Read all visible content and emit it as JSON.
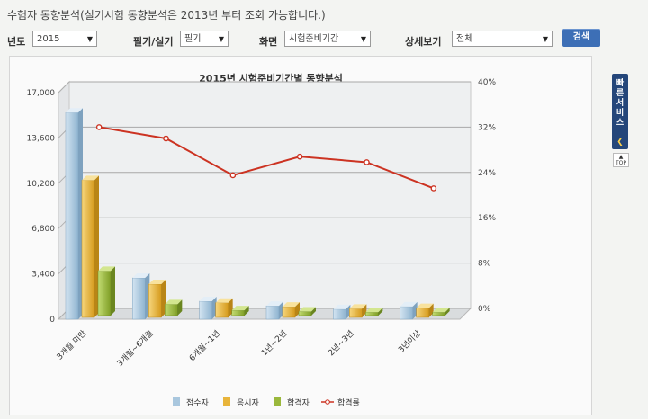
{
  "page": {
    "title": "수험자 동향분석(실기시험 동향분석은 2013년 부터 조회 가능합니다.)"
  },
  "filters": {
    "year_label": "년도",
    "year_value": "2015",
    "exam_type_label": "필기/실기",
    "exam_type_value": "필기",
    "view_label": "화면",
    "view_value": "시험준비기간",
    "detail_label": "상세보기",
    "detail_value": "전체",
    "search_label": "검색"
  },
  "side": {
    "quick_service_label": "빠른서비스",
    "collapse_icon": "chevron-left-icon",
    "top_label": "TOP"
  },
  "colors": {
    "bar_applicants": "#a9c7de",
    "bar_examinees": "#e8b43a",
    "bar_passers": "#9ab83c",
    "line_pass_rate": "#cc3322",
    "button": "#3d6fb6"
  },
  "chart_data": {
    "type": "bar",
    "title": "2015년 시험준비기간별 동향분석",
    "categories": [
      "3개월 미만",
      "3개월~6개월",
      "6개월~1년",
      "1년~2년",
      "2년~3년",
      "3년이상"
    ],
    "y_left": {
      "ticks": [
        "17,000",
        "13,600",
        "10,200",
        "6,800",
        "3,400",
        "0"
      ],
      "range": [
        0,
        17000
      ]
    },
    "y_right": {
      "ticks": [
        "40%",
        "32%",
        "24%",
        "16%",
        "8%",
        "0%"
      ],
      "range": [
        0,
        40
      ]
    },
    "series": [
      {
        "name": "접수자",
        "axis": "left",
        "values": [
          15500,
          3100,
          1350,
          1000,
          750,
          950
        ]
      },
      {
        "name": "응시자",
        "axis": "left",
        "values": [
          10300,
          2500,
          1100,
          800,
          650,
          700
        ]
      },
      {
        "name": "합격자",
        "axis": "left",
        "values": [
          3350,
          850,
          400,
          300,
          250,
          250
        ]
      },
      {
        "name": "합격률",
        "axis": "right",
        "type": "line",
        "values": [
          32.0,
          30.0,
          23.5,
          26.8,
          25.8,
          21.2
        ]
      }
    ],
    "grid": true,
    "legend": "bottom"
  }
}
